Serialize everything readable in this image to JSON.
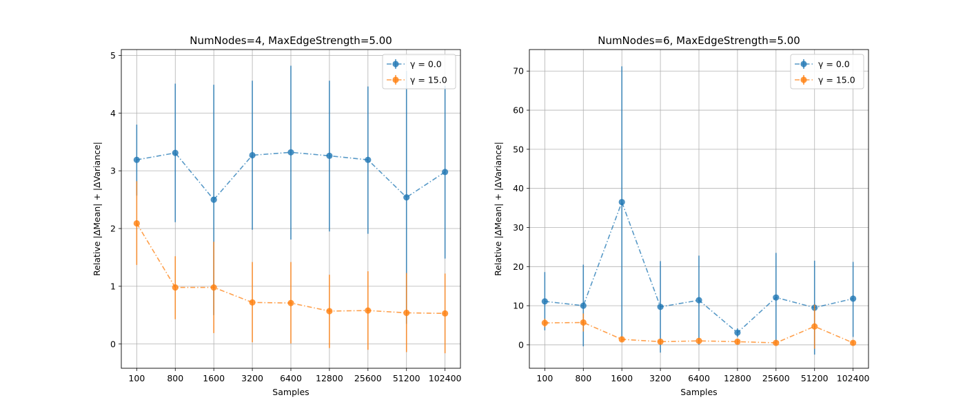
{
  "figure": {
    "background": "#ffffff",
    "grid_color": "#b0b0b0"
  },
  "chart_data": [
    {
      "type": "line",
      "title": "NumNodes=4, MaxEdgeStrength=5.00",
      "xlabel": "Samples",
      "ylabel": "Relative |ΔMean| + |ΔVariance|",
      "categories": [
        "100",
        "800",
        "1600",
        "3200",
        "6400",
        "12800",
        "25600",
        "51200",
        "102400"
      ],
      "ylim": [
        -0.42,
        5.1
      ],
      "yticks": [
        0,
        1,
        2,
        3,
        4,
        5
      ],
      "grid": true,
      "legend": "upper right",
      "series": [
        {
          "name": "γ = 0.0",
          "color": "#1f77b4",
          "values": [
            3.19,
            3.31,
            2.5,
            3.27,
            3.32,
            3.26,
            3.19,
            2.54,
            2.98
          ],
          "err_low": [
            2.57,
            2.11,
            0.5,
            1.98,
            1.81,
            1.95,
            1.91,
            0.35,
            1.48
          ],
          "err_high": [
            3.8,
            4.51,
            4.49,
            4.56,
            4.82,
            4.56,
            4.46,
            4.73,
            4.47
          ]
        },
        {
          "name": "γ = 15.0",
          "color": "#ff7f0e",
          "values": [
            2.09,
            0.98,
            0.98,
            0.72,
            0.71,
            0.57,
            0.58,
            0.54,
            0.53
          ],
          "err_low": [
            1.37,
            0.43,
            0.19,
            0.03,
            0.01,
            -0.07,
            -0.1,
            -0.14,
            -0.16
          ],
          "err_high": [
            2.82,
            1.52,
            1.77,
            1.42,
            1.42,
            1.2,
            1.26,
            1.23,
            1.22
          ]
        }
      ]
    },
    {
      "type": "line",
      "title": "NumNodes=6, MaxEdgeStrength=5.00",
      "xlabel": "Samples",
      "ylabel": "Relative |ΔMean| + |ΔVariance|",
      "categories": [
        "100",
        "800",
        "1600",
        "3200",
        "6400",
        "12800",
        "25600",
        "51200",
        "102400"
      ],
      "ylim": [
        -6,
        75.5
      ],
      "yticks": [
        0,
        10,
        20,
        30,
        40,
        50,
        60,
        70
      ],
      "grid": true,
      "legend": "upper right",
      "series": [
        {
          "name": "γ = 0.0",
          "color": "#1f77b4",
          "values": [
            11.1,
            10.0,
            36.5,
            9.7,
            11.4,
            3.1,
            12.1,
            9.5,
            11.8
          ],
          "err_low": [
            3.7,
            -0.4,
            1.8,
            -2.0,
            0.0,
            2.0,
            0.7,
            -2.5,
            2.0
          ],
          "err_high": [
            18.6,
            20.5,
            71.2,
            21.4,
            22.8,
            4.2,
            23.5,
            21.5,
            21.2
          ]
        },
        {
          "name": "γ = 15.0",
          "color": "#ff7f0e",
          "values": [
            5.6,
            5.7,
            1.4,
            0.8,
            1.0,
            0.8,
            0.5,
            4.7,
            0.5
          ],
          "err_low": [
            4.5,
            3.4,
            0.9,
            0.2,
            0.4,
            0.2,
            0.1,
            -1.0,
            0.0
          ],
          "err_high": [
            6.7,
            8.0,
            1.9,
            1.4,
            1.6,
            1.4,
            0.9,
            10.3,
            1.0
          ]
        }
      ]
    }
  ]
}
